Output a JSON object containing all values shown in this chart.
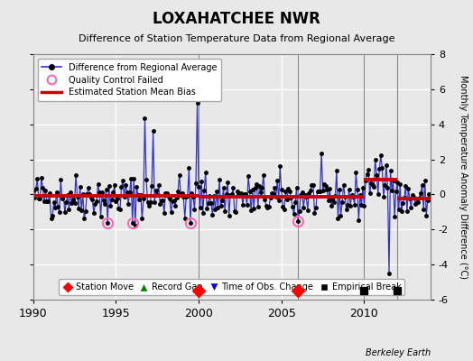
{
  "title": "LOXAHATCHEE NWR",
  "subtitle": "Difference of Station Temperature Data from Regional Average",
  "ylabel": "Monthly Temperature Anomaly Difference (°C)",
  "xlim": [
    1990,
    2014
  ],
  "ylim": [
    -6,
    8
  ],
  "yticks": [
    -6,
    -4,
    -2,
    0,
    2,
    4,
    6,
    8
  ],
  "xticks": [
    1990,
    1995,
    2000,
    2005,
    2010
  ],
  "bg_color": "#e8e8e8",
  "grid_color": "white",
  "station_moves": [
    2000.0,
    2006.0
  ],
  "empirical_breaks": [
    2010.0,
    2012.0
  ],
  "bias_segments": [
    {
      "x_start": 1990,
      "x_end": 2000,
      "bias": -0.1
    },
    {
      "x_start": 2000,
      "x_end": 2010.0,
      "bias": -0.15
    },
    {
      "x_start": 2010.0,
      "x_end": 2012.0,
      "bias": 0.85
    },
    {
      "x_start": 2012.0,
      "x_end": 2014,
      "bias": -0.25
    }
  ],
  "qc_failed_times": [
    1994.5,
    1996.0,
    1999.5,
    2006.0
  ],
  "data_color": "#3333cc",
  "bias_color": "#cc0000",
  "qc_color": "#ff69b4",
  "berkeley_earth_text": "Berkeley Earth",
  "spike_1997a_t": 1996.75,
  "spike_1997a_v": 4.35,
  "spike_1997b_t": 1997.25,
  "spike_1997b_v": 3.6,
  "spike_2000_t": 1999.917,
  "spike_2000_v": 5.2,
  "spike_drop_2011_t": 2011.5,
  "spike_drop_2011_v": -4.5,
  "y_marker": -5.5
}
